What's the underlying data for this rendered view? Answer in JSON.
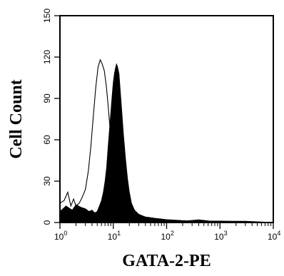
{
  "chart_data": {
    "type": "area",
    "xlabel": "GATA-2-PE",
    "ylabel": "Cell Count",
    "x_scale": "log",
    "xlim": [
      1,
      10000
    ],
    "ylim": [
      0,
      150
    ],
    "x_ticks": [
      {
        "base": "10",
        "exp": "0",
        "value": 1
      },
      {
        "base": "10",
        "exp": "1",
        "value": 10
      },
      {
        "base": "10",
        "exp": "2",
        "value": 100
      },
      {
        "base": "10",
        "exp": "3",
        "value": 1000
      },
      {
        "base": "10",
        "exp": "4",
        "value": 10000
      }
    ],
    "y_ticks": [
      "0",
      "30",
      "60",
      "90",
      "120",
      "150"
    ],
    "grid": false,
    "series": [
      {
        "style": "outline",
        "color": "#000000",
        "points": [
          [
            1.0,
            14
          ],
          [
            1.2,
            16
          ],
          [
            1.4,
            22
          ],
          [
            1.6,
            12
          ],
          [
            1.8,
            17
          ],
          [
            2.0,
            12
          ],
          [
            2.3,
            14
          ],
          [
            2.6,
            18
          ],
          [
            3.0,
            24
          ],
          [
            3.4,
            37
          ],
          [
            3.8,
            55
          ],
          [
            4.2,
            76
          ],
          [
            4.7,
            98
          ],
          [
            5.2,
            113
          ],
          [
            5.7,
            118
          ],
          [
            6.2,
            115
          ],
          [
            6.8,
            110
          ],
          [
            7.4,
            99
          ],
          [
            8.0,
            85
          ],
          [
            8.6,
            70
          ],
          [
            9.3,
            60
          ],
          [
            10.0,
            54
          ],
          [
            11.0,
            75
          ],
          [
            12.0,
            98
          ],
          [
            13.0,
            90
          ],
          [
            14.0,
            72
          ],
          [
            16.0,
            48
          ],
          [
            18.0,
            30
          ],
          [
            20.0,
            18
          ],
          [
            23.0,
            11
          ],
          [
            27.0,
            7
          ],
          [
            32.0,
            5
          ],
          [
            40.0,
            4
          ],
          [
            60.0,
            3
          ],
          [
            100.0,
            2
          ],
          [
            300.0,
            1
          ],
          [
            1000.0,
            1
          ],
          [
            10000.0,
            0
          ]
        ]
      },
      {
        "style": "filled",
        "color": "#000000",
        "points": [
          [
            1.0,
            8
          ],
          [
            1.3,
            12
          ],
          [
            1.7,
            9
          ],
          [
            2.0,
            13
          ],
          [
            2.5,
            11
          ],
          [
            3.0,
            10
          ],
          [
            3.5,
            8
          ],
          [
            4.0,
            9
          ],
          [
            4.5,
            7
          ],
          [
            5.0,
            8
          ],
          [
            5.5,
            12
          ],
          [
            6.0,
            16
          ],
          [
            6.5,
            22
          ],
          [
            7.0,
            30
          ],
          [
            7.5,
            40
          ],
          [
            8.0,
            55
          ],
          [
            8.5,
            68
          ],
          [
            9.0,
            80
          ],
          [
            9.5,
            92
          ],
          [
            10.0,
            102
          ],
          [
            10.5,
            108
          ],
          [
            11.0,
            112
          ],
          [
            11.5,
            115
          ],
          [
            12.0,
            113
          ],
          [
            12.8,
            108
          ],
          [
            13.5,
            96
          ],
          [
            14.5,
            80
          ],
          [
            15.5,
            64
          ],
          [
            17.0,
            46
          ],
          [
            18.5,
            32
          ],
          [
            20.0,
            22
          ],
          [
            22.0,
            14
          ],
          [
            25.0,
            9
          ],
          [
            30.0,
            6
          ],
          [
            40.0,
            4
          ],
          [
            60.0,
            3
          ],
          [
            100.0,
            2
          ],
          [
            200.0,
            1
          ],
          [
            400.0,
            2
          ],
          [
            700.0,
            1
          ],
          [
            1000.0,
            1
          ],
          [
            3000.0,
            1
          ],
          [
            10000.0,
            0
          ]
        ]
      }
    ]
  }
}
